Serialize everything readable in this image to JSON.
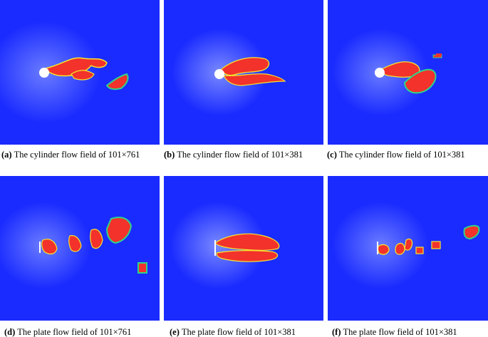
{
  "figure": {
    "panels": [
      {
        "label": "(a)",
        "caption": "The cylinder flow field of 101×761",
        "obstacle": "cylinder"
      },
      {
        "label": "(b)",
        "caption": "The cylinder flow field of 101×381",
        "obstacle": "cylinder"
      },
      {
        "label": "(c)",
        "caption": "The cylinder flow field of 101×381",
        "obstacle": "cylinder"
      },
      {
        "label": "(d)",
        "caption": "The plate flow field of 101×761",
        "obstacle": "plate"
      },
      {
        "label": "(e)",
        "caption": "The plate flow field of 101×381",
        "obstacle": "plate"
      },
      {
        "label": "(f)",
        "caption": "The plate flow field of 101×381",
        "obstacle": "plate"
      }
    ],
    "colors": {
      "background": "#1a2bff",
      "vortex": "#f2322b",
      "edge_yellow": "#f6e62d",
      "edge_green": "#2fd38a",
      "cylinder": "#ffffff"
    }
  }
}
